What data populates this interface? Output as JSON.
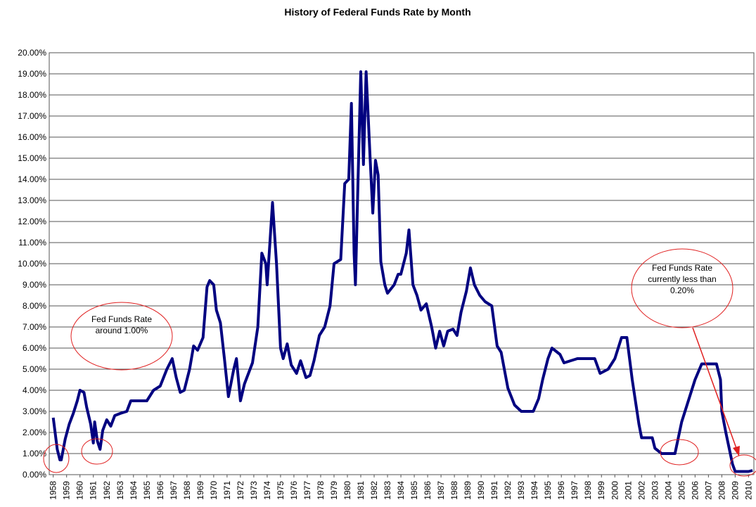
{
  "chart_data": {
    "type": "line",
    "title": "History of Federal Funds Rate by Month",
    "annotations": [
      "Fed Funds Rate around 1.00%",
      "Fed Funds Rate currently less than 0.20%"
    ],
    "xlim": [
      1957.7,
      2010.4
    ],
    "xticks": [
      1958,
      1959,
      1960,
      1961,
      1962,
      1963,
      1964,
      1965,
      1966,
      1967,
      1968,
      1969,
      1970,
      1971,
      1972,
      1973,
      1974,
      1975,
      1976,
      1977,
      1978,
      1979,
      1980,
      1981,
      1982,
      1983,
      1984,
      1985,
      1986,
      1987,
      1988,
      1989,
      1990,
      1991,
      1992,
      1993,
      1994,
      1995,
      1996,
      1997,
      1998,
      1999,
      2000,
      2001,
      2002,
      2003,
      2004,
      2005,
      2006,
      2007,
      2008,
      2009,
      2010
    ],
    "ylim": [
      0,
      20
    ],
    "yticks": [
      {
        "value": 0,
        "label": "0.00%"
      },
      {
        "value": 1,
        "label": "1.00%"
      },
      {
        "value": 2,
        "label": "2.00%"
      },
      {
        "value": 3,
        "label": "3.00%"
      },
      {
        "value": 4,
        "label": "4.00%"
      },
      {
        "value": 5,
        "label": "5.00%"
      },
      {
        "value": 6,
        "label": "6.00%"
      },
      {
        "value": 7,
        "label": "7.00%"
      },
      {
        "value": 8,
        "label": "8.00%"
      },
      {
        "value": 9,
        "label": "9.00%"
      },
      {
        "value": 10,
        "label": "10.00%"
      },
      {
        "value": 11,
        "label": "11.00%"
      },
      {
        "value": 12,
        "label": "12.00%"
      },
      {
        "value": 13,
        "label": "13.00%"
      },
      {
        "value": 14,
        "label": "14.00%"
      },
      {
        "value": 15,
        "label": "15.00%"
      },
      {
        "value": 16,
        "label": "16.00%"
      },
      {
        "value": 17,
        "label": "17.00%"
      },
      {
        "value": 18,
        "label": "18.00%"
      },
      {
        "value": 19,
        "label": "19.00%"
      },
      {
        "value": 20,
        "label": "20.00%"
      }
    ],
    "grid": true,
    "color": "#000080",
    "x": [
      1958.0,
      1958.3,
      1958.5,
      1958.6,
      1958.9,
      1959.2,
      1959.5,
      1959.8,
      1960.0,
      1960.3,
      1960.5,
      1960.8,
      1961.0,
      1961.1,
      1961.3,
      1961.5,
      1961.7,
      1962.0,
      1962.3,
      1962.6,
      1963.0,
      1963.5,
      1963.8,
      1964.5,
      1965.0,
      1965.5,
      1966.0,
      1966.5,
      1966.9,
      1967.2,
      1967.5,
      1967.8,
      1968.2,
      1968.5,
      1968.8,
      1969.2,
      1969.5,
      1969.7,
      1970.0,
      1970.2,
      1970.5,
      1970.8,
      1971.1,
      1971.5,
      1971.7,
      1972.0,
      1972.3,
      1972.9,
      1973.3,
      1973.6,
      1973.9,
      1974.0,
      1974.4,
      1974.7,
      1975.0,
      1975.2,
      1975.5,
      1975.8,
      1976.2,
      1976.5,
      1976.9,
      1977.2,
      1977.5,
      1977.9,
      1978.3,
      1978.7,
      1979.0,
      1979.5,
      1979.8,
      1980.1,
      1980.3,
      1980.5,
      1980.6,
      1981.0,
      1981.2,
      1981.4,
      1981.7,
      1981.9,
      1982.1,
      1982.3,
      1982.5,
      1982.8,
      1983.0,
      1983.5,
      1983.8,
      1984.0,
      1984.4,
      1984.6,
      1984.9,
      1985.2,
      1985.5,
      1985.9,
      1986.3,
      1986.6,
      1986.9,
      1987.2,
      1987.5,
      1987.9,
      1988.2,
      1988.5,
      1988.9,
      1989.2,
      1989.5,
      1989.9,
      1990.3,
      1990.8,
      1991.2,
      1991.5,
      1992.0,
      1992.5,
      1993.0,
      1993.9,
      1994.3,
      1994.6,
      1995.0,
      1995.3,
      1995.9,
      1996.2,
      1997.2,
      1998.5,
      1998.9,
      1999.5,
      2000.0,
      2000.5,
      2000.9,
      2001.3,
      2001.8,
      2002.0,
      2002.8,
      2003.0,
      2003.5,
      2004.5,
      2005.0,
      2005.5,
      2006.0,
      2006.5,
      2007.6,
      2007.9,
      2008.0,
      2008.3,
      2008.8,
      2009.0,
      2010.0,
      2010.3
    ],
    "series": [
      {
        "values": [
          2.7,
          1.2,
          0.7,
          0.7,
          1.7,
          2.4,
          2.9,
          3.5,
          4.0,
          3.9,
          3.2,
          2.4,
          1.5,
          2.5,
          1.6,
          1.2,
          2.1,
          2.6,
          2.3,
          2.8,
          2.9,
          3.0,
          3.5,
          3.5,
          3.5,
          4.0,
          4.2,
          5.0,
          5.5,
          4.6,
          3.9,
          4.0,
          5.0,
          6.1,
          5.9,
          6.5,
          8.9,
          9.2,
          9.0,
          7.8,
          7.2,
          5.5,
          3.7,
          5.0,
          5.5,
          3.5,
          4.3,
          5.3,
          7.0,
          10.5,
          10.0,
          9.0,
          12.9,
          10.0,
          6.0,
          5.5,
          6.2,
          5.2,
          4.8,
          5.4,
          4.6,
          4.7,
          5.4,
          6.6,
          7.0,
          8.0,
          10.0,
          10.2,
          13.8,
          14.0,
          17.6,
          10.5,
          9.0,
          19.1,
          14.7,
          19.1,
          15.0,
          12.4,
          14.9,
          14.2,
          10.1,
          9.0,
          8.6,
          9.0,
          9.5,
          9.5,
          10.5,
          11.6,
          9.0,
          8.5,
          7.8,
          8.1,
          7.0,
          6.0,
          6.8,
          6.1,
          6.8,
          6.9,
          6.6,
          7.7,
          8.7,
          9.8,
          9.0,
          8.5,
          8.2,
          8.0,
          6.1,
          5.8,
          4.1,
          3.3,
          3.0,
          3.0,
          3.6,
          4.5,
          5.5,
          6.0,
          5.7,
          5.3,
          5.5,
          5.5,
          4.8,
          5.0,
          5.5,
          6.5,
          6.5,
          4.5,
          2.4,
          1.75,
          1.75,
          1.25,
          1.0,
          1.0,
          2.5,
          3.5,
          4.5,
          5.25,
          5.25,
          4.5,
          3.0,
          2.0,
          0.5,
          0.15,
          0.15,
          0.2
        ]
      }
    ]
  }
}
